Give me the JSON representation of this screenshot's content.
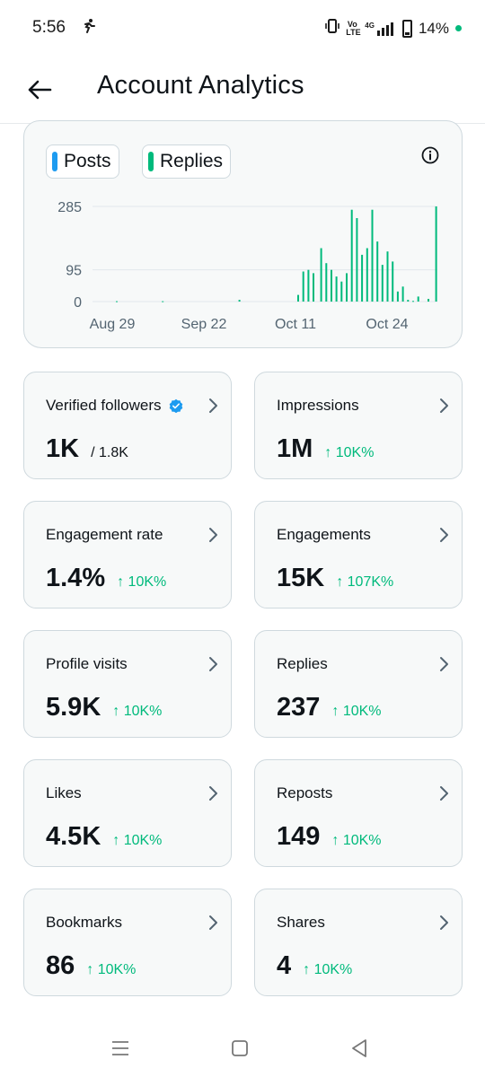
{
  "status": {
    "time": "5:56",
    "battery": "14%",
    "volte": "Vo LTE",
    "network": "4G"
  },
  "header": {
    "title": "Account Analytics"
  },
  "legend": {
    "posts": "Posts",
    "replies": "Replies",
    "posts_color": "#1d9bf0",
    "replies_color": "#00ba7c"
  },
  "chart_data": {
    "type": "bar",
    "series": [
      {
        "name": "Replies",
        "color": "#00ba7c",
        "values": [
          0,
          0,
          0,
          0,
          0,
          0,
          0,
          0,
          0,
          1,
          0,
          0,
          0,
          0,
          0,
          0,
          0,
          0,
          0,
          0,
          0,
          0,
          0,
          0,
          0,
          0,
          0,
          1,
          0,
          0,
          0,
          0,
          0,
          0,
          0,
          0,
          0,
          0,
          0,
          0,
          0,
          0,
          0,
          0,
          0,
          0,
          0,
          0,
          0,
          0,
          0,
          0,
          0,
          0,
          0,
          0,
          0,
          5,
          0,
          0,
          0,
          0,
          0,
          0,
          0,
          0,
          0,
          0,
          0,
          0,
          0,
          0,
          0,
          0,
          0,
          0,
          0,
          0,
          0,
          0,
          20,
          0,
          90,
          0,
          95,
          0,
          85,
          0,
          0,
          160,
          0,
          115,
          0,
          95,
          0,
          75,
          0,
          60,
          0,
          85,
          0,
          275,
          0,
          250,
          0,
          140,
          0,
          160,
          0,
          275,
          0,
          180,
          0,
          110,
          0,
          150,
          0,
          120,
          0,
          30,
          0,
          45,
          0,
          5,
          0,
          2,
          0,
          15,
          0,
          0,
          0,
          8,
          0,
          0,
          285
        ]
      }
    ],
    "y_ticks": [
      "285",
      "95",
      "0"
    ],
    "y_values": [
      285,
      95,
      0
    ],
    "x_labels": [
      "Aug 29",
      "Sep 22",
      "Oct 11",
      "Oct 24"
    ],
    "ylim": [
      0,
      285
    ],
    "grid": true
  },
  "cards": [
    {
      "title": "Verified followers",
      "value": "1K",
      "sub": "/ 1.8K",
      "delta": "",
      "verified": true
    },
    {
      "title": "Impressions",
      "value": "1M",
      "sub": "",
      "delta": "↑ 10K%"
    },
    {
      "title": "Engagement rate",
      "value": "1.4%",
      "sub": "",
      "delta": "↑ 10K%"
    },
    {
      "title": "Engagements",
      "value": "15K",
      "sub": "",
      "delta": "↑ 107K%"
    },
    {
      "title": "Profile visits",
      "value": "5.9K",
      "sub": "",
      "delta": "↑ 10K%"
    },
    {
      "title": "Replies",
      "value": "237",
      "sub": "",
      "delta": "↑ 10K%"
    },
    {
      "title": "Likes",
      "value": "4.5K",
      "sub": "",
      "delta": "↑ 10K%"
    },
    {
      "title": "Reposts",
      "value": "149",
      "sub": "",
      "delta": "↑ 10K%"
    },
    {
      "title": "Bookmarks",
      "value": "86",
      "sub": "",
      "delta": "↑ 10K%"
    },
    {
      "title": "Shares",
      "value": "4",
      "sub": "",
      "delta": "↑ 10K%"
    }
  ]
}
